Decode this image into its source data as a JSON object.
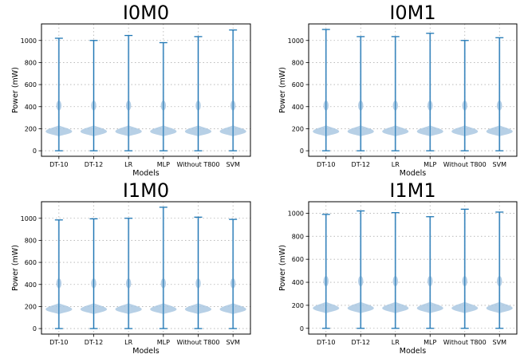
{
  "colors": {
    "violin_line": "#1f77b4",
    "violin_fill": "#aac8e2",
    "grid": "#b0b0b0"
  },
  "chart_data": [
    {
      "type": "violin",
      "title": "I0M0",
      "xlabel": "Models",
      "ylabel": "Power (mW)",
      "categories": [
        "DT-10",
        "DT-12",
        "LR",
        "MLP",
        "Without T800",
        "SVM"
      ],
      "ylim": [
        -50,
        1150
      ],
      "yticks": [
        0,
        200,
        400,
        600,
        800,
        1000
      ],
      "grid": true,
      "series": [
        {
          "min": 0,
          "max": 1020,
          "median": 175,
          "upper_bulge": 410
        },
        {
          "min": 0,
          "max": 1000,
          "median": 175,
          "upper_bulge": 410
        },
        {
          "min": 0,
          "max": 1045,
          "median": 175,
          "upper_bulge": 410
        },
        {
          "min": 0,
          "max": 980,
          "median": 175,
          "upper_bulge": 410
        },
        {
          "min": 0,
          "max": 1035,
          "median": 175,
          "upper_bulge": 410
        },
        {
          "min": 0,
          "max": 1095,
          "median": 175,
          "upper_bulge": 410
        }
      ]
    },
    {
      "type": "violin",
      "title": "I0M1",
      "xlabel": "Models",
      "ylabel": "Power (mW)",
      "categories": [
        "DT-10",
        "DT-12",
        "LR",
        "MLP",
        "Without T800",
        "SVM"
      ],
      "ylim": [
        -50,
        1150
      ],
      "yticks": [
        0,
        200,
        400,
        600,
        800,
        1000
      ],
      "grid": true,
      "series": [
        {
          "min": 0,
          "max": 1100,
          "median": 175,
          "upper_bulge": 410
        },
        {
          "min": 0,
          "max": 1035,
          "median": 175,
          "upper_bulge": 410
        },
        {
          "min": 0,
          "max": 1035,
          "median": 175,
          "upper_bulge": 410
        },
        {
          "min": 0,
          "max": 1065,
          "median": 175,
          "upper_bulge": 410
        },
        {
          "min": 0,
          "max": 1000,
          "median": 175,
          "upper_bulge": 410
        },
        {
          "min": 0,
          "max": 1025,
          "median": 175,
          "upper_bulge": 410
        }
      ]
    },
    {
      "type": "violin",
      "title": "I1M0",
      "xlabel": "Models",
      "ylabel": "Power (mW)",
      "categories": [
        "DT-10",
        "DT-12",
        "LR",
        "MLP",
        "Without T800",
        "SVM"
      ],
      "ylim": [
        -50,
        1150
      ],
      "yticks": [
        0,
        200,
        400,
        600,
        800,
        1000
      ],
      "grid": true,
      "series": [
        {
          "min": 0,
          "max": 985,
          "median": 175,
          "upper_bulge": 410
        },
        {
          "min": 0,
          "max": 995,
          "median": 175,
          "upper_bulge": 410
        },
        {
          "min": 0,
          "max": 1000,
          "median": 175,
          "upper_bulge": 410
        },
        {
          "min": 0,
          "max": 1100,
          "median": 175,
          "upper_bulge": 410
        },
        {
          "min": 0,
          "max": 1010,
          "median": 175,
          "upper_bulge": 410
        },
        {
          "min": 0,
          "max": 990,
          "median": 175,
          "upper_bulge": 410
        }
      ]
    },
    {
      "type": "violin",
      "title": "I1M1",
      "xlabel": "Models",
      "ylabel": "Power (mW)",
      "categories": [
        "DT-10",
        "DT-12",
        "LR",
        "MLP",
        "Without T800",
        "SVM"
      ],
      "ylim": [
        -50,
        1100
      ],
      "yticks": [
        0,
        200,
        400,
        600,
        800,
        1000
      ],
      "grid": true,
      "series": [
        {
          "min": 0,
          "max": 990,
          "median": 175,
          "upper_bulge": 410
        },
        {
          "min": 0,
          "max": 1020,
          "median": 175,
          "upper_bulge": 410
        },
        {
          "min": 0,
          "max": 1005,
          "median": 175,
          "upper_bulge": 410
        },
        {
          "min": 0,
          "max": 970,
          "median": 175,
          "upper_bulge": 410
        },
        {
          "min": 0,
          "max": 1035,
          "median": 175,
          "upper_bulge": 410
        },
        {
          "min": 0,
          "max": 1010,
          "median": 175,
          "upper_bulge": 410
        }
      ]
    }
  ]
}
